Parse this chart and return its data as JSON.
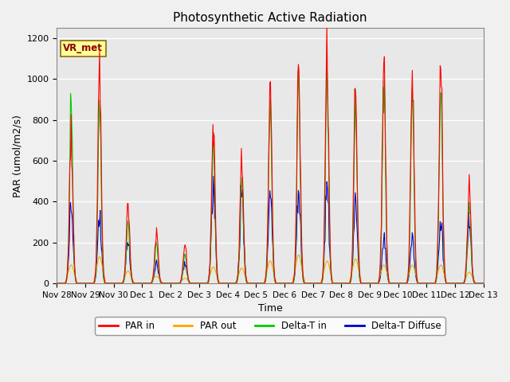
{
  "title": "Photosynthetic Active Radiation",
  "ylabel": "PAR (umol/m2/s)",
  "xlabel": "Time",
  "annotation_text": "VR_met",
  "ylim": [
    0,
    1250
  ],
  "plot_bg_color": "#e8e8e8",
  "fig_bg_color": "#f0f0f0",
  "grid_color": "white",
  "colors": {
    "PAR_in": "#ff0000",
    "PAR_out": "#ffa500",
    "Delta_T_in": "#00cc00",
    "Delta_T_Diffuse": "#0000cc"
  },
  "legend_labels": [
    "PAR in",
    "PAR out",
    "Delta-T in",
    "Delta-T Diffuse"
  ],
  "x_tick_labels": [
    "Nov 28",
    "Nov 29",
    "Nov 30",
    "Dec 1",
    "Dec 2",
    "Dec 3",
    "Dec 4",
    "Dec 5",
    "Dec 6",
    "Dec 7",
    "Dec 8",
    "Dec 9",
    "Dec 10",
    "Dec 11",
    "Dec 12",
    "Dec 13"
  ],
  "n_days": 15,
  "day_peaks_PAR": [
    700,
    1050,
    380,
    250,
    190,
    800,
    620,
    950,
    1080,
    1100,
    970,
    1070,
    1060,
    1060,
    490
  ],
  "day_peaks_green": [
    900,
    900,
    300,
    200,
    150,
    700,
    520,
    900,
    1000,
    1000,
    870,
    960,
    960,
    960,
    410
  ],
  "day_peaks_blue": [
    380,
    330,
    200,
    100,
    100,
    480,
    440,
    450,
    460,
    470,
    390,
    220,
    210,
    310,
    300
  ],
  "day_peaks_orange": [
    90,
    130,
    60,
    35,
    25,
    80,
    75,
    110,
    140,
    110,
    120,
    90,
    90,
    90,
    55
  ],
  "figsize": [
    6.4,
    4.8
  ],
  "dpi": 100
}
